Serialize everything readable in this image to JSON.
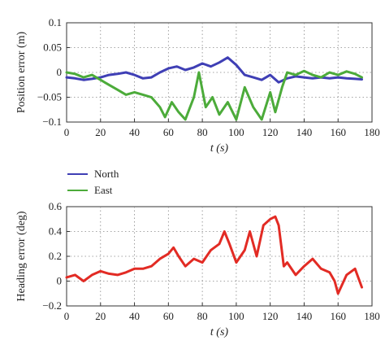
{
  "chart_data": [
    {
      "type": "line",
      "ylabel": "Position error (m)",
      "xlabel": "t (s)",
      "xlim": [
        0,
        180
      ],
      "ylim": [
        -0.1,
        0.1
      ],
      "xticks": [
        0,
        20,
        40,
        60,
        80,
        100,
        120,
        140,
        160,
        180
      ],
      "yticks": [
        -0.1,
        -0.05,
        0,
        0.05,
        0.1
      ],
      "xtick_labels": [
        "0",
        "20",
        "40",
        "60",
        "80",
        "100",
        "120",
        "140",
        "160",
        "180"
      ],
      "ytick_labels": [
        "−0.1",
        "−0.05",
        "0",
        "0.05",
        "0.1"
      ],
      "grid": true,
      "legend": {
        "placement": "below-left",
        "entries": [
          "North",
          "East"
        ]
      },
      "series": [
        {
          "name": "North",
          "color": "#3f3fb5",
          "x": [
            0,
            5,
            10,
            15,
            20,
            25,
            30,
            35,
            40,
            45,
            50,
            55,
            60,
            65,
            70,
            75,
            80,
            85,
            90,
            95,
            100,
            105,
            110,
            115,
            120,
            125,
            130,
            135,
            140,
            145,
            150,
            155,
            160,
            165,
            170,
            174
          ],
          "y": [
            -0.01,
            -0.012,
            -0.015,
            -0.013,
            -0.01,
            -0.005,
            -0.003,
            0.0,
            -0.005,
            -0.012,
            -0.01,
            0.0,
            0.008,
            0.012,
            0.005,
            0.01,
            0.018,
            0.012,
            0.02,
            0.03,
            0.015,
            -0.005,
            -0.01,
            -0.015,
            -0.005,
            -0.02,
            -0.012,
            -0.008,
            -0.01,
            -0.012,
            -0.01,
            -0.012,
            -0.01,
            -0.012,
            -0.013,
            -0.014
          ]
        },
        {
          "name": "East",
          "color": "#4cab3a",
          "x": [
            0,
            5,
            10,
            15,
            20,
            25,
            30,
            35,
            40,
            45,
            50,
            55,
            58,
            62,
            66,
            70,
            75,
            78,
            82,
            86,
            90,
            95,
            100,
            105,
            110,
            115,
            120,
            123,
            127,
            130,
            135,
            140,
            145,
            150,
            155,
            160,
            165,
            170,
            174
          ],
          "y": [
            0.0,
            -0.003,
            -0.01,
            -0.005,
            -0.015,
            -0.025,
            -0.035,
            -0.045,
            -0.04,
            -0.045,
            -0.05,
            -0.07,
            -0.09,
            -0.06,
            -0.08,
            -0.095,
            -0.05,
            0.0,
            -0.07,
            -0.05,
            -0.085,
            -0.06,
            -0.095,
            -0.03,
            -0.07,
            -0.095,
            -0.04,
            -0.08,
            -0.03,
            0.0,
            -0.005,
            0.003,
            -0.005,
            -0.01,
            0.0,
            -0.005,
            0.002,
            -0.003,
            -0.01
          ]
        }
      ]
    },
    {
      "type": "line",
      "ylabel": "Heading error (deg)",
      "xlabel": "t (s)",
      "xlim": [
        0,
        180
      ],
      "ylim": [
        -0.2,
        0.6
      ],
      "xticks": [
        0,
        20,
        40,
        60,
        80,
        100,
        120,
        140,
        160,
        180
      ],
      "yticks": [
        -0.2,
        0,
        0.2,
        0.4,
        0.6
      ],
      "xtick_labels": [
        "0",
        "20",
        "40",
        "60",
        "80",
        "100",
        "120",
        "140",
        "160",
        "180"
      ],
      "ytick_labels": [
        "−0.2",
        "0",
        "0.2",
        "0.4",
        "0.6"
      ],
      "grid": true,
      "series": [
        {
          "color": "#e22b24",
          "x": [
            0,
            5,
            10,
            15,
            20,
            25,
            30,
            35,
            40,
            45,
            50,
            55,
            60,
            63,
            66,
            70,
            75,
            80,
            85,
            90,
            93,
            96,
            100,
            105,
            108,
            112,
            116,
            120,
            123,
            125,
            128,
            130,
            135,
            140,
            145,
            150,
            155,
            158,
            160,
            165,
            170,
            174
          ],
          "y": [
            0.03,
            0.05,
            0.0,
            0.05,
            0.08,
            0.06,
            0.05,
            0.07,
            0.1,
            0.1,
            0.12,
            0.18,
            0.22,
            0.27,
            0.2,
            0.12,
            0.18,
            0.15,
            0.25,
            0.3,
            0.4,
            0.3,
            0.15,
            0.25,
            0.4,
            0.2,
            0.45,
            0.5,
            0.52,
            0.45,
            0.12,
            0.15,
            0.05,
            0.12,
            0.18,
            0.1,
            0.07,
            0.0,
            -0.1,
            0.05,
            0.1,
            -0.05
          ]
        }
      ]
    }
  ]
}
